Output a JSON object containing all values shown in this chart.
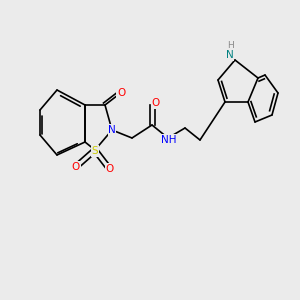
{
  "background_color": "#ebebeb",
  "bond_color": "#000000",
  "atom_colors": {
    "N": "#0000ff",
    "O": "#ff0000",
    "S": "#cccc00",
    "NH": "#008080",
    "C": "#000000"
  },
  "font_size_atoms": 7.5,
  "font_size_small": 6.5,
  "line_width": 1.2
}
